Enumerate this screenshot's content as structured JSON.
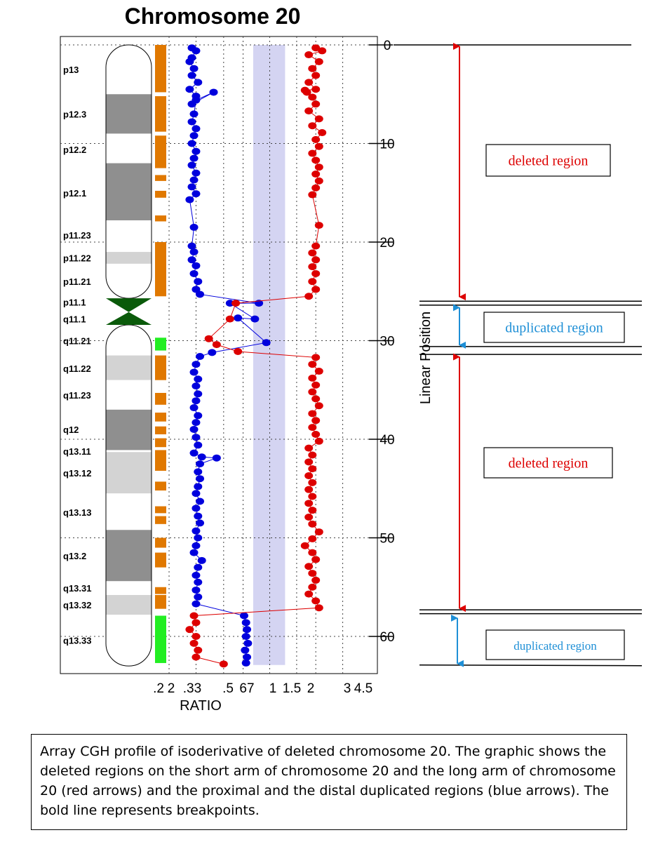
{
  "chart_data": {
    "type": "scatter",
    "title": "Chromosome 20",
    "xlabel": "RATIO",
    "ylabel": "Linear Position",
    "x_scale": "log",
    "x_tick_labels": [
      ".2",
      "2",
      ".33",
      ".5",
      "67",
      "1",
      "1.5",
      "2",
      "3",
      "4.5"
    ],
    "y_ticks": [
      0,
      10,
      20,
      30,
      40,
      50,
      60
    ],
    "ylim": [
      0,
      63
    ],
    "bands": [
      {
        "name": "p13",
        "start": 0,
        "end": 5,
        "stain": "gneg"
      },
      {
        "name": "p12.3",
        "start": 5,
        "end": 9,
        "stain": "gpos"
      },
      {
        "name": "p12.2",
        "start": 9,
        "end": 12,
        "stain": "gneg"
      },
      {
        "name": "p12.1",
        "start": 12,
        "end": 17.8,
        "stain": "gpos"
      },
      {
        "name": "p11.23",
        "start": 17.8,
        "end": 21,
        "stain": "gneg"
      },
      {
        "name": "p11.22",
        "start": 21,
        "end": 22.2,
        "stain": "gpos-light"
      },
      {
        "name": "p11.21",
        "start": 22.2,
        "end": 25.7,
        "stain": "gneg"
      },
      {
        "name": "p11.1",
        "start": 25.7,
        "end": 28.4,
        "stain": "centromere"
      },
      {
        "name": "q11.1",
        "start": 28.4,
        "end": 28.4,
        "stain": "centromere"
      },
      {
        "name": "q11.21",
        "start": 28.4,
        "end": 31.5,
        "stain": "gneg"
      },
      {
        "name": "q11.22",
        "start": 31.5,
        "end": 34,
        "stain": "gpos-light"
      },
      {
        "name": "q11.23",
        "start": 34,
        "end": 37,
        "stain": "gneg"
      },
      {
        "name": "q12",
        "start": 37,
        "end": 41.1,
        "stain": "gpos"
      },
      {
        "name": "q13.11",
        "start": 41.1,
        "end": 41.3,
        "stain": "gneg"
      },
      {
        "name": "q13.12",
        "start": 41.3,
        "end": 45.5,
        "stain": "gpos-light"
      },
      {
        "name": "q13.13",
        "start": 45.5,
        "end": 49.2,
        "stain": "gneg"
      },
      {
        "name": "q13.2",
        "start": 49.2,
        "end": 54.4,
        "stain": "gpos"
      },
      {
        "name": "q13.31",
        "start": 54.4,
        "end": 55.8,
        "stain": "gneg"
      },
      {
        "name": "q13.32",
        "start": 55.8,
        "end": 57.8,
        "stain": "gpos-light"
      },
      {
        "name": "q13.33",
        "start": 57.8,
        "end": 63,
        "stain": "gneg"
      }
    ],
    "coverage": [
      {
        "start": 0,
        "end": 4.8,
        "color": "#e07800"
      },
      {
        "start": 5.2,
        "end": 8.8,
        "color": "#e07800"
      },
      {
        "start": 9.2,
        "end": 12.5,
        "color": "#e07800"
      },
      {
        "start": 13.2,
        "end": 13.8,
        "color": "#e07800"
      },
      {
        "start": 14.8,
        "end": 15.5,
        "color": "#e07800"
      },
      {
        "start": 17.3,
        "end": 17.9,
        "color": "#e07800"
      },
      {
        "start": 20,
        "end": 25.5,
        "color": "#e07800"
      },
      {
        "start": 29.7,
        "end": 31,
        "color": "#22ee22"
      },
      {
        "start": 31.5,
        "end": 34,
        "color": "#e07800"
      },
      {
        "start": 35.3,
        "end": 36.5,
        "color": "#e07800"
      },
      {
        "start": 37.3,
        "end": 38.2,
        "color": "#e07800"
      },
      {
        "start": 38.7,
        "end": 39.5,
        "color": "#e07800"
      },
      {
        "start": 39.9,
        "end": 40.8,
        "color": "#e07800"
      },
      {
        "start": 41.1,
        "end": 43.2,
        "color": "#e07800"
      },
      {
        "start": 44.3,
        "end": 45.2,
        "color": "#e07800"
      },
      {
        "start": 46.8,
        "end": 47.5,
        "color": "#e07800"
      },
      {
        "start": 47.8,
        "end": 48.6,
        "color": "#e07800"
      },
      {
        "start": 50,
        "end": 51,
        "color": "#e07800"
      },
      {
        "start": 51.5,
        "end": 53,
        "color": "#e07800"
      },
      {
        "start": 55,
        "end": 55.7,
        "color": "#e07800"
      },
      {
        "start": 55.8,
        "end": 57.2,
        "color": "#e07800"
      },
      {
        "start": 57.9,
        "end": 62.7,
        "color": "#22ee22"
      }
    ],
    "series": [
      {
        "color": "#0000dd",
        "points": [
          [
            0.31,
            0.3
          ],
          [
            0.33,
            0.6
          ],
          [
            0.31,
            1.3
          ],
          [
            0.3,
            1.7
          ],
          [
            0.32,
            2.4
          ],
          [
            0.31,
            3.1
          ],
          [
            0.34,
            3.8
          ],
          [
            0.3,
            4.5
          ],
          [
            0.33,
            5.2
          ],
          [
            0.31,
            6.0
          ],
          [
            0.43,
            4.8
          ],
          [
            0.33,
            5.6
          ],
          [
            0.32,
            7.0
          ],
          [
            0.31,
            7.8
          ],
          [
            0.33,
            8.5
          ],
          [
            0.32,
            9.2
          ],
          [
            0.31,
            10.0
          ],
          [
            0.33,
            10.8
          ],
          [
            0.32,
            11.5
          ],
          [
            0.31,
            12.2
          ],
          [
            0.33,
            13.0
          ],
          [
            0.32,
            13.7
          ],
          [
            0.31,
            14.4
          ],
          [
            0.33,
            15.1
          ],
          [
            0.3,
            15.7
          ],
          [
            0.32,
            18.5
          ],
          [
            0.31,
            20.4
          ],
          [
            0.32,
            21.0
          ],
          [
            0.31,
            21.8
          ],
          [
            0.33,
            22.4
          ],
          [
            0.32,
            23.2
          ],
          [
            0.34,
            24.0
          ],
          [
            0.33,
            24.8
          ],
          [
            0.35,
            25.3
          ],
          [
            0.85,
            26.2
          ],
          [
            0.55,
            26.2
          ],
          [
            0.8,
            27.8
          ],
          [
            0.62,
            27.7
          ],
          [
            0.95,
            30.2
          ],
          [
            0.42,
            31.2
          ],
          [
            0.35,
            31.6
          ],
          [
            0.33,
            32.4
          ],
          [
            0.32,
            33.2
          ],
          [
            0.34,
            33.9
          ],
          [
            0.33,
            34.6
          ],
          [
            0.34,
            35.4
          ],
          [
            0.33,
            36.1
          ],
          [
            0.32,
            36.8
          ],
          [
            0.34,
            37.6
          ],
          [
            0.33,
            38.3
          ],
          [
            0.32,
            39.0
          ],
          [
            0.33,
            39.8
          ],
          [
            0.34,
            40.6
          ],
          [
            0.32,
            41.4
          ],
          [
            0.36,
            41.8
          ],
          [
            0.45,
            41.9
          ],
          [
            0.35,
            42.5
          ],
          [
            0.34,
            43.3
          ],
          [
            0.35,
            44.0
          ],
          [
            0.34,
            44.8
          ],
          [
            0.33,
            45.5
          ],
          [
            0.35,
            46.3
          ],
          [
            0.33,
            47.0
          ],
          [
            0.34,
            47.8
          ],
          [
            0.35,
            48.5
          ],
          [
            0.33,
            49.3
          ],
          [
            0.34,
            50.0
          ],
          [
            0.33,
            50.8
          ],
          [
            0.32,
            51.5
          ],
          [
            0.36,
            52.3
          ],
          [
            0.34,
            53.0
          ],
          [
            0.33,
            53.8
          ],
          [
            0.34,
            54.5
          ],
          [
            0.33,
            55.3
          ],
          [
            0.34,
            56.0
          ],
          [
            0.33,
            56.7
          ],
          [
            0.68,
            57.9
          ],
          [
            0.7,
            58.6
          ],
          [
            0.71,
            59.3
          ],
          [
            0.7,
            60.0
          ],
          [
            0.72,
            60.7
          ],
          [
            0.69,
            61.4
          ],
          [
            0.71,
            62.1
          ],
          [
            0.7,
            62.7
          ]
        ]
      },
      {
        "color": "#dd0000",
        "points": [
          [
            2.0,
            0.3
          ],
          [
            2.2,
            0.6
          ],
          [
            1.8,
            1.0
          ],
          [
            2.1,
            1.7
          ],
          [
            1.9,
            2.4
          ],
          [
            2.0,
            3.1
          ],
          [
            1.8,
            3.8
          ],
          [
            2.0,
            4.5
          ],
          [
            1.7,
            4.6
          ],
          [
            1.75,
            4.8
          ],
          [
            1.9,
            5.3
          ],
          [
            2.0,
            6.0
          ],
          [
            1.8,
            6.7
          ],
          [
            2.1,
            7.5
          ],
          [
            1.9,
            8.2
          ],
          [
            2.2,
            8.9
          ],
          [
            2.0,
            9.6
          ],
          [
            2.1,
            10.3
          ],
          [
            1.9,
            11.0
          ],
          [
            2.0,
            11.7
          ],
          [
            2.1,
            12.4
          ],
          [
            2.0,
            13.1
          ],
          [
            2.1,
            13.8
          ],
          [
            2.0,
            14.5
          ],
          [
            1.9,
            15.2
          ],
          [
            2.1,
            18.3
          ],
          [
            2.0,
            20.4
          ],
          [
            1.9,
            21.1
          ],
          [
            2.0,
            21.8
          ],
          [
            1.9,
            22.5
          ],
          [
            2.0,
            23.2
          ],
          [
            1.9,
            24.0
          ],
          [
            2.0,
            24.8
          ],
          [
            1.8,
            25.5
          ],
          [
            0.6,
            26.2
          ],
          [
            0.55,
            27.8
          ],
          [
            0.4,
            29.8
          ],
          [
            0.45,
            30.4
          ],
          [
            0.62,
            31.1
          ],
          [
            2.0,
            31.7
          ],
          [
            1.9,
            32.4
          ],
          [
            2.1,
            33.1
          ],
          [
            1.9,
            33.8
          ],
          [
            2.0,
            34.5
          ],
          [
            1.9,
            35.2
          ],
          [
            2.0,
            35.9
          ],
          [
            2.1,
            36.6
          ],
          [
            1.9,
            37.4
          ],
          [
            2.0,
            38.1
          ],
          [
            1.9,
            38.8
          ],
          [
            2.0,
            39.5
          ],
          [
            2.1,
            40.2
          ],
          [
            1.8,
            40.9
          ],
          [
            1.9,
            41.6
          ],
          [
            1.8,
            42.3
          ],
          [
            1.9,
            43.0
          ],
          [
            1.8,
            43.7
          ],
          [
            1.9,
            44.4
          ],
          [
            1.8,
            45.1
          ],
          [
            1.9,
            45.8
          ],
          [
            1.8,
            46.5
          ],
          [
            1.9,
            47.2
          ],
          [
            1.8,
            47.9
          ],
          [
            1.9,
            48.6
          ],
          [
            2.1,
            49.4
          ],
          [
            1.9,
            50.1
          ],
          [
            1.7,
            50.8
          ],
          [
            1.9,
            51.5
          ],
          [
            2.0,
            52.2
          ],
          [
            1.8,
            52.9
          ],
          [
            1.9,
            53.6
          ],
          [
            2.0,
            54.3
          ],
          [
            1.9,
            55.0
          ],
          [
            1.8,
            55.7
          ],
          [
            2.0,
            56.4
          ],
          [
            2.1,
            57.1
          ],
          [
            0.32,
            57.9
          ],
          [
            0.33,
            58.6
          ],
          [
            0.3,
            59.3
          ],
          [
            0.33,
            60.0
          ],
          [
            0.32,
            60.7
          ],
          [
            0.34,
            61.4
          ],
          [
            0.33,
            62.1
          ],
          [
            0.5,
            62.8
          ]
        ]
      }
    ],
    "breakpoints": [
      26.0,
      26.4,
      30.6,
      31.4,
      57.3,
      57.7,
      62.9
    ],
    "annotations": [
      {
        "text": "deleted region",
        "start": 0,
        "end": 25.7,
        "color": "#dd0000"
      },
      {
        "text": "duplicated region",
        "start": 26.5,
        "end": 30.6,
        "color": "#1e8fd6"
      },
      {
        "text": "deleted region",
        "start": 31.5,
        "end": 57.3,
        "color": "#dd0000"
      },
      {
        "text": "duplicated region",
        "start": 58.0,
        "end": 62.9,
        "color": "#1e8fd6"
      }
    ]
  },
  "caption": "Array CGH profile of isoderivative of deleted chromosome 20. The graphic shows the deleted regions on the short arm of chromosome 20 and the long arm of chromosome 20 (red arrows) and the proximal and the distal duplicated regions (blue arrows). The bold line represents breakpoints."
}
